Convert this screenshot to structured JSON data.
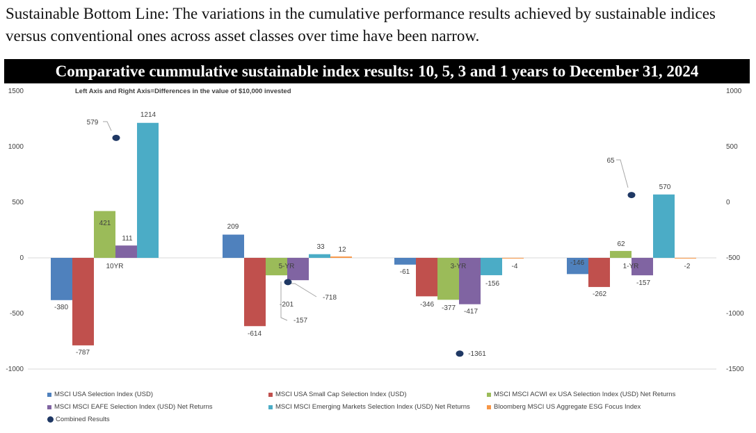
{
  "headline": "Sustainable Bottom Line: The variations in the cumulative performance results achieved by sustainable indices versus conventional ones across asset classes over time have been narrow.",
  "banner": "Comparative cummulative sustainable index results: 10, 5, 3 and 1 years to December 31, 2024",
  "chart_data": {
    "type": "bar",
    "title": "Left Axis and Right Axis=Differences in the value of $10,000 invested",
    "categories": [
      "10YR",
      "5-YR",
      "3-YR",
      "1-YR"
    ],
    "left_axis": {
      "ylim": [
        -1000,
        1500
      ],
      "ticks": [
        "1500",
        "1000",
        "500",
        "0",
        "-500",
        "-1000"
      ]
    },
    "right_axis": {
      "ylim": [
        -1500,
        1000
      ],
      "ticks": [
        "1000",
        "500",
        "0",
        "-500",
        "-1000",
        "-1500"
      ]
    },
    "grid": false,
    "legend_position": "bottom",
    "series": [
      {
        "name": "MSCI USA Selection Index (USD)",
        "color": "#4F81BD",
        "axis": "left",
        "values": [
          -380,
          209,
          -61,
          -146
        ]
      },
      {
        "name": "MSCI USA Small Cap Selection Index (USD)",
        "color": "#C0504D",
        "axis": "left",
        "values": [
          -787,
          -614,
          -346,
          -262
        ]
      },
      {
        "name": "MSCI MSCI ACWI ex USA Selection Index (USD) Net Returns",
        "color": "#9BBB59",
        "axis": "left",
        "values": [
          421,
          -157,
          -377,
          62
        ]
      },
      {
        "name": "MSCI MSCI EAFE Selection Index (USD) Net Returns",
        "color": "#8064A2",
        "axis": "left",
        "values": [
          111,
          -201,
          -417,
          -157
        ]
      },
      {
        "name": "MSCI MSCI Emerging Markets Selection Index (USD) Net Returns",
        "color": "#4BACC6",
        "axis": "left",
        "values": [
          1214,
          33,
          -156,
          570
        ]
      },
      {
        "name": "Bloomberg MSCI US Aggregate ESG Focus Index",
        "color": "#F79646",
        "axis": "left",
        "values": [
          0,
          12,
          -4,
          -2
        ]
      },
      {
        "name": "Combined Results",
        "color": "#1F3864",
        "axis": "right",
        "type": "scatter",
        "values": [
          579,
          -718,
          -1361,
          65
        ]
      }
    ]
  }
}
